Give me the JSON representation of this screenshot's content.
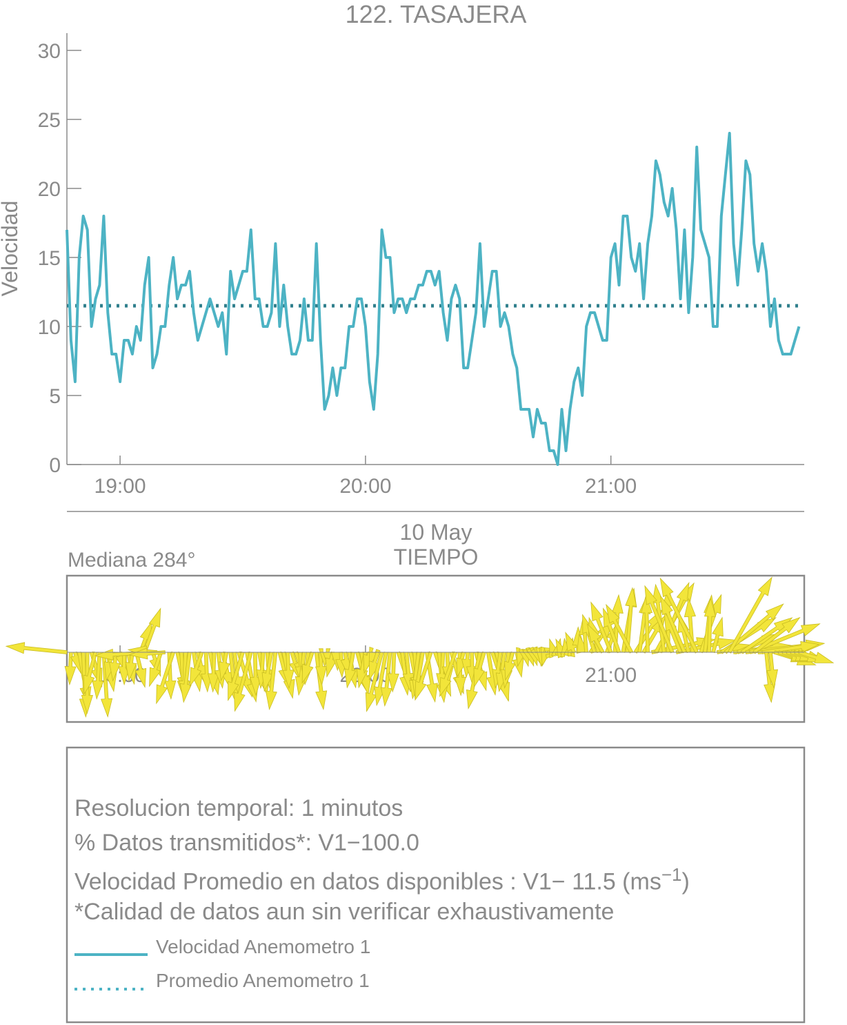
{
  "chart_data": [
    {
      "type": "line",
      "title": "122. TASAJERA",
      "ylabel": "Velocidad",
      "xlabel": "TIEMPO",
      "date_label": "10 May",
      "ylim": [
        0,
        30
      ],
      "yticks": [
        "0",
        "5",
        "10",
        "15",
        "20",
        "25",
        "30"
      ],
      "xticks": [
        "19:00",
        "20:00",
        "21:00"
      ],
      "x_start": "18:47",
      "x_step_minutes": 1,
      "series": [
        {
          "name": "Velocidad Anemometro 1",
          "color": "#4db3c4",
          "style": "solid",
          "values": [
            17,
            9,
            6,
            15,
            18,
            17,
            10,
            12,
            13,
            18,
            11,
            8,
            8,
            6,
            9,
            9,
            8,
            10,
            9,
            13,
            15,
            7,
            8,
            10,
            10,
            13,
            15,
            12,
            13,
            13,
            14,
            11,
            9,
            10,
            11,
            12,
            11,
            10,
            11,
            8,
            14,
            12,
            13,
            14,
            14,
            17,
            12,
            12,
            10,
            10,
            11,
            16,
            10,
            13,
            10,
            8,
            8,
            9,
            12,
            9,
            9,
            16,
            9,
            4,
            5,
            7,
            5,
            7,
            7,
            10,
            10,
            12,
            12,
            10,
            6,
            4,
            8,
            17,
            15,
            15,
            11,
            12,
            12,
            11,
            12,
            12,
            13,
            13,
            14,
            14,
            13,
            14,
            11,
            9,
            12,
            13,
            12,
            7,
            7,
            9,
            11,
            16,
            10,
            12,
            14,
            14,
            10,
            11,
            10,
            8,
            7,
            4,
            4,
            4,
            2,
            4,
            3,
            3,
            1,
            1,
            0,
            4,
            1,
            4,
            6,
            7,
            5,
            10,
            11,
            11,
            10,
            9,
            9,
            15,
            16,
            13,
            18,
            18,
            15,
            14,
            16,
            12,
            16,
            18,
            22,
            21,
            19,
            18,
            20,
            17,
            12,
            17,
            11,
            15,
            23,
            17,
            16,
            15,
            10,
            10,
            18,
            21,
            24,
            16,
            13,
            17,
            22,
            21,
            16,
            14,
            16,
            14,
            10,
            12,
            9,
            8,
            8,
            8,
            9,
            10
          ]
        },
        {
          "name": "Promedio Anemometro 1",
          "color": "#2f7f8c",
          "style": "dotted",
          "values": [
            11.5
          ]
        }
      ]
    },
    {
      "type": "vector",
      "title": "Mediana 284°",
      "xticks": [
        "19:00",
        "20:00",
        "21:00"
      ],
      "color": "#f2e53a"
    }
  ],
  "info": {
    "line1": "Resolucion temporal: 1 minutos",
    "line2": "% Datos transmitidos*: V1−100.0",
    "line3_prefix": "Velocidad Promedio en datos disponibles : V1− 11.5 (ms",
    "line3_exp": "−1",
    "line3_suffix": ")",
    "line4": "*Calidad de datos aun sin verificar exhaustivamente",
    "legend1": "Velocidad Anemometro 1",
    "legend2": "Promedio Anemometro 1"
  }
}
